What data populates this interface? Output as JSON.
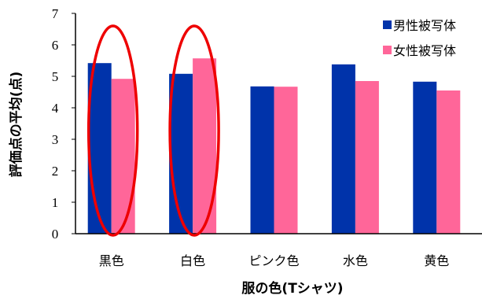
{
  "chart_data": {
    "type": "bar",
    "categories": [
      "黒色",
      "白色",
      "ピンク色",
      "水色",
      "黄色"
    ],
    "series": [
      {
        "name": "男性被写体",
        "color": "#0033aa",
        "values": [
          5.42,
          5.08,
          4.68,
          5.38,
          4.83
        ]
      },
      {
        "name": "女性被写体",
        "color": "#ff6699",
        "values": [
          4.92,
          5.57,
          4.67,
          4.85,
          4.55
        ]
      }
    ],
    "title": "",
    "xlabel": "服の色(Tシャツ)",
    "ylabel": "評価点の平均(点)",
    "ylim": [
      0,
      7
    ],
    "yticks": [
      "0",
      "1",
      "2",
      "3",
      "4",
      "5",
      "6",
      "7"
    ],
    "grid": false,
    "legend": "top-right",
    "annotations": [
      {
        "type": "ellipse",
        "color": "#ee0000",
        "category": "黒色"
      },
      {
        "type": "ellipse",
        "color": "#ee0000",
        "category": "白色"
      }
    ]
  }
}
